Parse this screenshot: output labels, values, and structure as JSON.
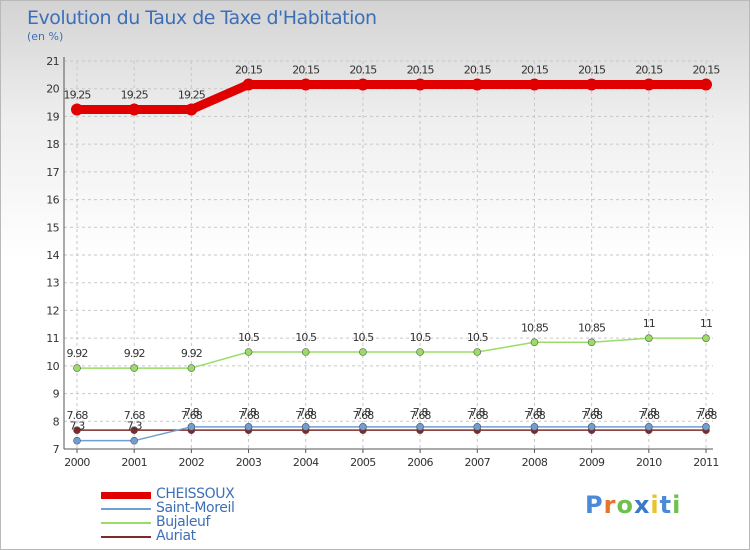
{
  "chart_data": {
    "type": "line",
    "title": "Evolution du Taux de Taxe d'Habitation",
    "subtitle": "(en %)",
    "x": [
      "2000",
      "2001",
      "2002",
      "2003",
      "2004",
      "2005",
      "2006",
      "2007",
      "2008",
      "2009",
      "2010",
      "2011"
    ],
    "ylim": [
      7,
      21
    ],
    "yticks": [
      7,
      8,
      9,
      10,
      11,
      12,
      13,
      14,
      15,
      16,
      17,
      18,
      19,
      20,
      21
    ],
    "grid": true,
    "legend_position": "bottom-left",
    "series": [
      {
        "name": "CHEISSOUX",
        "color": "#e00000",
        "width": 9,
        "values": [
          19.25,
          19.25,
          19.25,
          20.15,
          20.15,
          20.15,
          20.15,
          20.15,
          20.15,
          20.15,
          20.15,
          20.15
        ],
        "labels": [
          "19.25",
          "19.25",
          "19.25",
          "20.15",
          "20.15",
          "20.15",
          "20.15",
          "20.15",
          "20.15",
          "20.15",
          "20.15",
          "20.15"
        ]
      },
      {
        "name": "Saint-Moreil",
        "color": "#6f9fd2",
        "width": 1.5,
        "values": [
          7.3,
          7.3,
          7.8,
          7.8,
          7.8,
          7.8,
          7.8,
          7.8,
          7.8,
          7.8,
          7.8,
          7.8
        ],
        "labels": [
          "7.3",
          "7.3",
          "7.8",
          "7.8",
          "7.8",
          "7.8",
          "7.8",
          "7.8",
          "7.8",
          "7.8",
          "7.8",
          "7.8"
        ]
      },
      {
        "name": "Bujaleuf",
        "color": "#99dd66",
        "width": 1.5,
        "values": [
          9.92,
          9.92,
          9.92,
          10.5,
          10.5,
          10.5,
          10.5,
          10.5,
          10.85,
          10.85,
          11,
          11
        ],
        "labels": [
          "9.92",
          "9.92",
          "9.92",
          "10.5",
          "10.5",
          "10.5",
          "10.5",
          "10.5",
          "10.85",
          "10.85",
          "11",
          "11"
        ]
      },
      {
        "name": "Auriat",
        "color": "#7f2a2a",
        "width": 1.5,
        "values": [
          7.68,
          7.68,
          7.68,
          7.68,
          7.68,
          7.68,
          7.68,
          7.68,
          7.68,
          7.68,
          7.68,
          7.68
        ],
        "labels": [
          "7.68",
          "7.68",
          "7.68",
          "7.68",
          "7.68",
          "7.68",
          "7.68",
          "7.68",
          "7.68",
          "7.68",
          "7.68",
          "7.68"
        ]
      }
    ]
  },
  "logo": {
    "text": "Proxiti",
    "colors": [
      "#4a8ad6",
      "#e8742a",
      "#6cc24a",
      "#3a7bc8",
      "#e8c32a",
      "#4a8ad6",
      "#6cc24a"
    ]
  }
}
